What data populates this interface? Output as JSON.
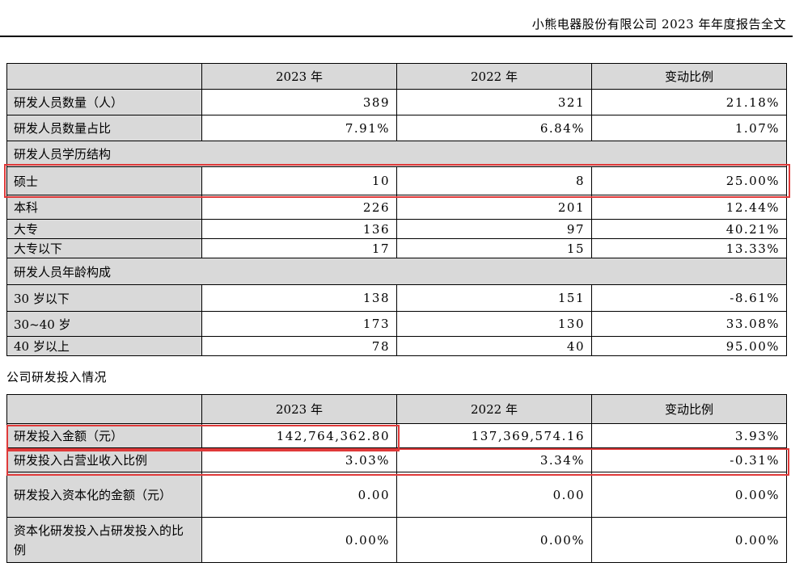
{
  "header": {
    "text": "小熊电器股份有限公司 2023 年年度报告全文"
  },
  "table1": {
    "columns": [
      "",
      "2023 年",
      "2022 年",
      "变动比例"
    ],
    "rows": [
      {
        "label": "研发人员数量（人）",
        "v2023": "389",
        "v2022": "321",
        "change": "21.18%"
      },
      {
        "label": "研发人员数量占比",
        "v2023": "7.91%",
        "v2022": "6.84%",
        "change": "1.07%"
      },
      {
        "section": "研发人员学历结构"
      },
      {
        "label": "硕士",
        "v2023": "10",
        "v2022": "8",
        "change": "25.00%"
      },
      {
        "label": "本科",
        "v2023": "226",
        "v2022": "201",
        "change": "12.44%"
      },
      {
        "label": "大专",
        "v2023": "136",
        "v2022": "97",
        "change": "40.21%"
      },
      {
        "label": "大专以下",
        "v2023": "17",
        "v2022": "15",
        "change": "13.33%"
      },
      {
        "section": "研发人员年龄构成"
      },
      {
        "label": "30 岁以下",
        "v2023": "138",
        "v2022": "151",
        "change": "-8.61%"
      },
      {
        "label": "30~40 岁",
        "v2023": "173",
        "v2022": "130",
        "change": "33.08%"
      },
      {
        "label": "40 岁以上",
        "v2023": "78",
        "v2022": "40",
        "change": "95.00%"
      }
    ]
  },
  "caption": "公司研发投入情况",
  "table2": {
    "columns": [
      "",
      "2023 年",
      "2022 年",
      "变动比例"
    ],
    "rows": [
      {
        "label": "研发投入金额（元）",
        "v2023": "142,764,362.80",
        "v2022": "137,369,574.16",
        "change": "3.93%"
      },
      {
        "label": "研发投入占营业收入比例",
        "v2023": "3.03%",
        "v2022": "3.34%",
        "change": "-0.31%"
      },
      {
        "label": "研发投入资本化的金额（元）",
        "v2023": "0.00",
        "v2022": "0.00",
        "change": "0.00%"
      },
      {
        "label": "资本化研发投入占研发投入的比例",
        "v2023": "0.00%",
        "v2022": "0.00%",
        "change": "0.00%"
      }
    ]
  },
  "highlight_color": "#e03a3a"
}
